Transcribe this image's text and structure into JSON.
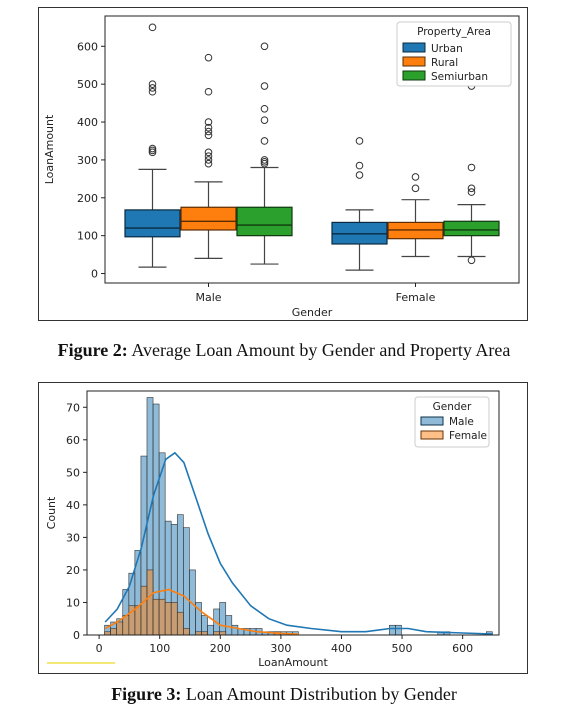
{
  "figures": [
    {
      "label": "Figure 2:",
      "caption": "Average Loan Amount by Gender and Property Area"
    },
    {
      "label": "Figure 3:",
      "caption": "Loan Amount Distribution by Gender"
    }
  ],
  "chart_data": [
    {
      "type": "box",
      "xlabel": "Gender",
      "ylabel": "LoanAmount",
      "ylim": [
        -25,
        680
      ],
      "yticks": [
        0,
        100,
        200,
        300,
        400,
        500,
        600
      ],
      "categories": [
        "Male",
        "Female"
      ],
      "legend": {
        "title": "Property_Area",
        "placement": "top-right"
      },
      "series": [
        {
          "name": "Urban",
          "color": "#1f77b4",
          "boxes": [
            {
              "whislo": 17,
              "q1": 97,
              "med": 120,
              "q3": 168,
              "whishi": 275,
              "fliers": [
                650,
                500,
                490,
                480,
                330,
                325,
                320
              ]
            },
            {
              "whislo": 9,
              "q1": 78,
              "med": 105,
              "q3": 135,
              "whishi": 168,
              "fliers": [
                350,
                285,
                260
              ]
            }
          ]
        },
        {
          "name": "Rural",
          "color": "#ff7f0e",
          "boxes": [
            {
              "whislo": 40,
              "q1": 115,
              "med": 138,
              "q3": 175,
              "whishi": 242,
              "fliers": [
                570,
                480,
                400,
                385,
                375,
                365,
                320,
                310,
                300,
                290
              ]
            },
            {
              "whislo": 45,
              "q1": 92,
              "med": 115,
              "q3": 135,
              "whishi": 195,
              "fliers": [
                255,
                225
              ]
            }
          ]
        },
        {
          "name": "Semiurban",
          "color": "#2ca02c",
          "boxes": [
            {
              "whislo": 25,
              "q1": 100,
              "med": 128,
              "q3": 175,
              "whishi": 280,
              "fliers": [
                600,
                495,
                435,
                405,
                350,
                300,
                295,
                290
              ]
            },
            {
              "whislo": 45,
              "q1": 100,
              "med": 115,
              "q3": 138,
              "whishi": 182,
              "fliers": [
                495,
                280,
                225,
                215,
                35
              ]
            }
          ]
        }
      ]
    },
    {
      "type": "histogram",
      "xlabel": "LoanAmount",
      "ylabel": "Count",
      "xlim": [
        -20,
        660
      ],
      "ylim": [
        0,
        75
      ],
      "xticks": [
        0,
        100,
        200,
        300,
        400,
        500,
        600
      ],
      "yticks": [
        0,
        10,
        20,
        30,
        40,
        50,
        60,
        70
      ],
      "bin_start": 9,
      "bin_width": 10,
      "legend": {
        "title": "Gender",
        "placement": "top-right"
      },
      "series": [
        {
          "name": "Male",
          "color": "#1f77b4",
          "counts": [
            3,
            4,
            5,
            14,
            19,
            26,
            55,
            73,
            71,
            56,
            35,
            34,
            37,
            33,
            20,
            10,
            6,
            3,
            8,
            10,
            6,
            3,
            2,
            2,
            2,
            2,
            1,
            1,
            1,
            1,
            1,
            1,
            0,
            0,
            0,
            0,
            0,
            0,
            0,
            0,
            0,
            0,
            0,
            0,
            0,
            0,
            0,
            3,
            3,
            0,
            0,
            0,
            0,
            0,
            0,
            1,
            1,
            0,
            0,
            0,
            0,
            0,
            0,
            1
          ],
          "kde": [
            [
              10,
              4
            ],
            [
              30,
              8
            ],
            [
              50,
              15
            ],
            [
              70,
              27
            ],
            [
              90,
              43
            ],
            [
              110,
              54
            ],
            [
              125,
              56
            ],
            [
              140,
              53
            ],
            [
              160,
              42
            ],
            [
              180,
              31
            ],
            [
              200,
              22
            ],
            [
              220,
              16
            ],
            [
              250,
              9
            ],
            [
              280,
              5
            ],
            [
              310,
              3
            ],
            [
              350,
              2
            ],
            [
              400,
              1
            ],
            [
              440,
              1
            ],
            [
              480,
              2
            ],
            [
              510,
              2
            ],
            [
              540,
              1
            ],
            [
              600,
              0.6
            ],
            [
              650,
              0.3
            ]
          ]
        },
        {
          "name": "Female",
          "color": "#ff7f0e",
          "counts": [
            1,
            2,
            4,
            6,
            9,
            9,
            15,
            20,
            11,
            11,
            10,
            10,
            7,
            2,
            0,
            1,
            1,
            0,
            1,
            1,
            0,
            0,
            0,
            0,
            0,
            0,
            0,
            0,
            1
          ],
          "kde": [
            [
              10,
              2
            ],
            [
              30,
              4
            ],
            [
              60,
              8
            ],
            [
              90,
              13
            ],
            [
              115,
              14
            ],
            [
              140,
              12
            ],
            [
              170,
              7
            ],
            [
              200,
              3
            ],
            [
              230,
              2
            ],
            [
              260,
              1
            ],
            [
              290,
              0.6
            ],
            [
              330,
              0.2
            ]
          ]
        }
      ]
    }
  ]
}
